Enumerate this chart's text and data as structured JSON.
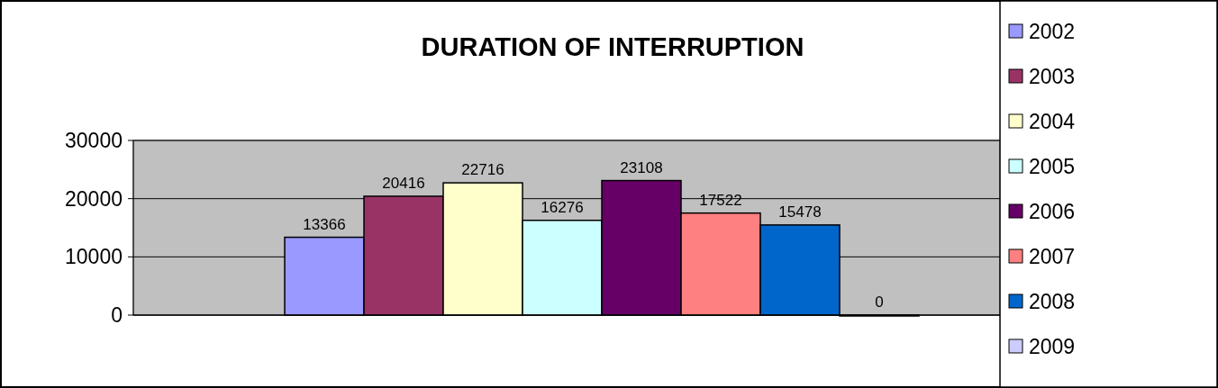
{
  "chart_data": {
    "type": "bar",
    "title": "DURATION OF INTERRUPTION",
    "categories": [
      null
    ],
    "series": [
      {
        "name": "2002",
        "color": "#9999ff",
        "values": [
          13366
        ]
      },
      {
        "name": "2003",
        "color": "#993366",
        "values": [
          20416
        ]
      },
      {
        "name": "2004",
        "color": "#ffffcc",
        "values": [
          22716
        ]
      },
      {
        "name": "2005",
        "color": "#ccffff",
        "values": [
          16276
        ]
      },
      {
        "name": "2006",
        "color": "#660066",
        "values": [
          23108
        ]
      },
      {
        "name": "2007",
        "color": "#ff8080",
        "values": [
          17522
        ]
      },
      {
        "name": "2008",
        "color": "#0066cc",
        "values": [
          15478
        ]
      },
      {
        "name": "2009",
        "color": "#ccccff",
        "values": [
          0
        ]
      }
    ],
    "ylim": [
      0,
      30000
    ],
    "yticks": [
      0,
      10000,
      20000,
      30000
    ],
    "grid": "y",
    "legend": "right",
    "data_labels": true
  }
}
